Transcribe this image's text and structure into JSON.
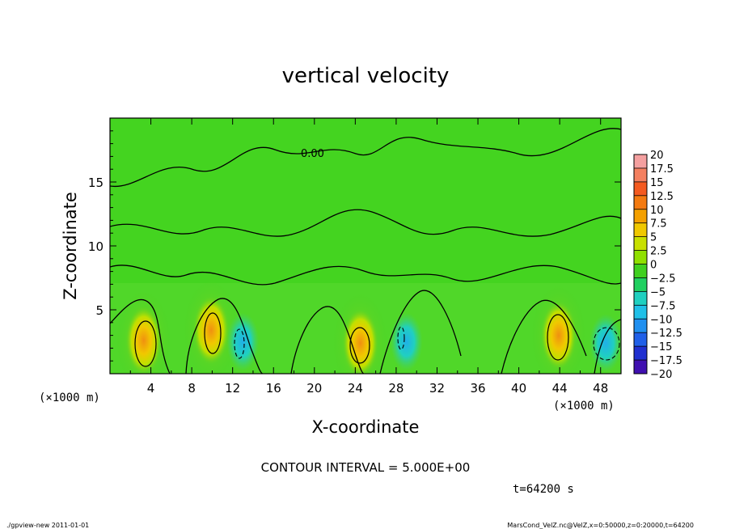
{
  "chart_data": {
    "type": "heatmap",
    "title": "vertical velocity",
    "xlabel": "X-coordinate",
    "ylabel": "Z-coordinate",
    "x_unit_note": "(×1000 m)",
    "y_unit_note": "(×1000 m)",
    "xlim": [
      0,
      50
    ],
    "ylim": [
      0,
      20
    ],
    "x_ticks": [
      4,
      8,
      12,
      16,
      20,
      24,
      28,
      32,
      36,
      40,
      44,
      48
    ],
    "y_ticks": [
      5,
      10,
      15
    ],
    "contour_interval_text": "CONTOUR INTERVAL = 5.000E+00",
    "contour_label": "0.00",
    "time_text": "t=64200 s",
    "footer_left": "./gpview-new  2011-01-01",
    "footer_right": "MarsCond_VelZ.nc@VelZ,x=0:50000,z=0:20000,t=64200",
    "colorbar": {
      "labels": [
        "20",
        "17.5",
        "15",
        "12.5",
        "10",
        "7.5",
        "5",
        "2.5",
        "0",
        "−2.5",
        "−5",
        "−7.5",
        "−10",
        "−12.5",
        "−15",
        "−17.5",
        "−20"
      ],
      "colors": [
        "#f4a0a0",
        "#f48060",
        "#f45a20",
        "#f47a10",
        "#f4a000",
        "#f0c800",
        "#c8e000",
        "#90e000",
        "#40d020",
        "#20d060",
        "#20d0c0",
        "#20c0e8",
        "#2090f0",
        "#2060e8",
        "#2030d0",
        "#4010b0",
        "#6000a0"
      ]
    },
    "updrafts": [
      {
        "x": 3.3,
        "z": 2.6,
        "w": 10
      },
      {
        "x": 9.9,
        "z": 3.4,
        "w": 7
      },
      {
        "x": 24.5,
        "z": 2.4,
        "w": 8
      },
      {
        "x": 43.9,
        "z": 3.0,
        "w": 10
      }
    ],
    "downdrafts": [
      {
        "x": 13.0,
        "z": 2.5,
        "w": -6
      },
      {
        "x": 29.0,
        "z": 2.5,
        "w": -5
      },
      {
        "x": 48.5,
        "z": 2.4,
        "w": -8
      }
    ]
  }
}
